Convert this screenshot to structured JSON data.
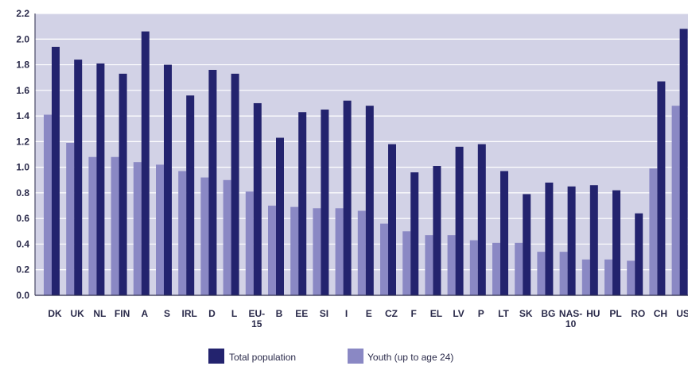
{
  "chart_data": {
    "type": "bar",
    "title": "",
    "xlabel": "",
    "ylabel": "",
    "ylim": [
      0,
      2.2
    ],
    "yticks": [
      "0.0",
      "0.2",
      "0.4",
      "0.6",
      "0.8",
      "1.0",
      "1.2",
      "1.4",
      "1.6",
      "1.8",
      "2.0",
      "2.2"
    ],
    "categories": [
      "DK",
      "UK",
      "NL",
      "FIN",
      "A",
      "S",
      "IRL",
      "D",
      "L",
      "EU-15",
      "B",
      "EE",
      "SI",
      "I",
      "E",
      "CZ",
      "F",
      "EL",
      "LV",
      "P",
      "LT",
      "SK",
      "BG",
      "NAS-10",
      "HU",
      "PL",
      "RO",
      "CH",
      "US"
    ],
    "category_labels": [
      [
        "DK"
      ],
      [
        "UK"
      ],
      [
        "NL"
      ],
      [
        "FIN"
      ],
      [
        "A"
      ],
      [
        "S"
      ],
      [
        "IRL"
      ],
      [
        "D"
      ],
      [
        "L"
      ],
      [
        "EU-",
        "15"
      ],
      [
        "B"
      ],
      [
        "EE"
      ],
      [
        "SI"
      ],
      [
        "I"
      ],
      [
        "E"
      ],
      [
        "CZ"
      ],
      [
        "F"
      ],
      [
        "EL"
      ],
      [
        "LV"
      ],
      [
        "P"
      ],
      [
        "LT"
      ],
      [
        "SK"
      ],
      [
        "BG"
      ],
      [
        "NAS-",
        "10"
      ],
      [
        "HU"
      ],
      [
        "PL"
      ],
      [
        "RO"
      ],
      [
        "CH"
      ],
      [
        "US"
      ]
    ],
    "series": [
      {
        "name": "Youth (up to age 24)",
        "color": "#8a88c4",
        "values": [
          1.41,
          1.19,
          1.08,
          1.08,
          1.04,
          1.02,
          0.97,
          0.92,
          0.9,
          0.81,
          0.7,
          0.69,
          0.68,
          0.68,
          0.66,
          0.56,
          0.5,
          0.47,
          0.47,
          0.43,
          0.41,
          0.41,
          0.34,
          0.34,
          0.28,
          0.28,
          0.27,
          0.99,
          1.48
        ]
      },
      {
        "name": "Total population",
        "color": "#23236e",
        "values": [
          1.94,
          1.84,
          1.81,
          1.73,
          2.06,
          1.8,
          1.56,
          1.76,
          1.73,
          1.5,
          1.23,
          1.43,
          1.45,
          1.52,
          1.48,
          1.18,
          0.96,
          1.01,
          1.16,
          1.18,
          0.97,
          0.79,
          0.88,
          0.85,
          0.86,
          0.82,
          0.64,
          1.67,
          2.08
        ]
      }
    ],
    "grid": true,
    "legend_position": "bottom-center",
    "legend": [
      {
        "label": "Total population",
        "color": "#23236e"
      },
      {
        "label": "Youth (up to age 24)",
        "color": "#8a88c4"
      }
    ],
    "plot_background": "#d2d2e6",
    "gridline_color": "#ffffff"
  }
}
